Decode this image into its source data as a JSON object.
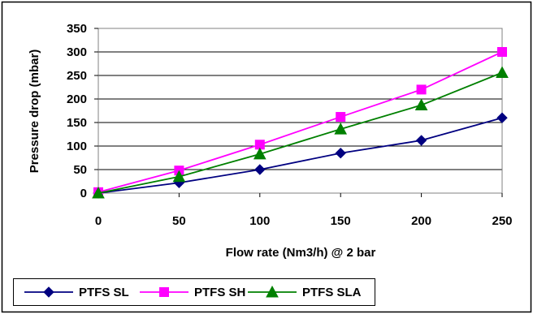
{
  "chart_data": {
    "type": "line",
    "title": "",
    "xlabel": "Flow rate (Nm3/h) @ 2 bar",
    "ylabel": "Pressure drop (mbar)",
    "x": [
      0,
      50,
      100,
      150,
      200,
      250
    ],
    "x_ticks": [
      "0",
      "50",
      "100",
      "150",
      "200",
      "250"
    ],
    "y_ticks": [
      "0",
      "50",
      "100",
      "150",
      "200",
      "250",
      "300",
      "350"
    ],
    "xlim": [
      0,
      250
    ],
    "ylim": [
      0,
      350
    ],
    "grid": "horizontal",
    "legend_position": "bottom",
    "series": [
      {
        "name": "PTFS SL",
        "values": [
          0,
          22,
          50,
          85,
          112,
          160
        ],
        "color": "#000080",
        "marker": "diamond"
      },
      {
        "name": "PTFS SH",
        "values": [
          2,
          48,
          103,
          162,
          220,
          300
        ],
        "color": "#ff00ff",
        "marker": "square"
      },
      {
        "name": "PTFS SLA",
        "values": [
          0,
          35,
          83,
          136,
          187,
          256
        ],
        "color": "#008000",
        "marker": "triangle"
      }
    ]
  }
}
